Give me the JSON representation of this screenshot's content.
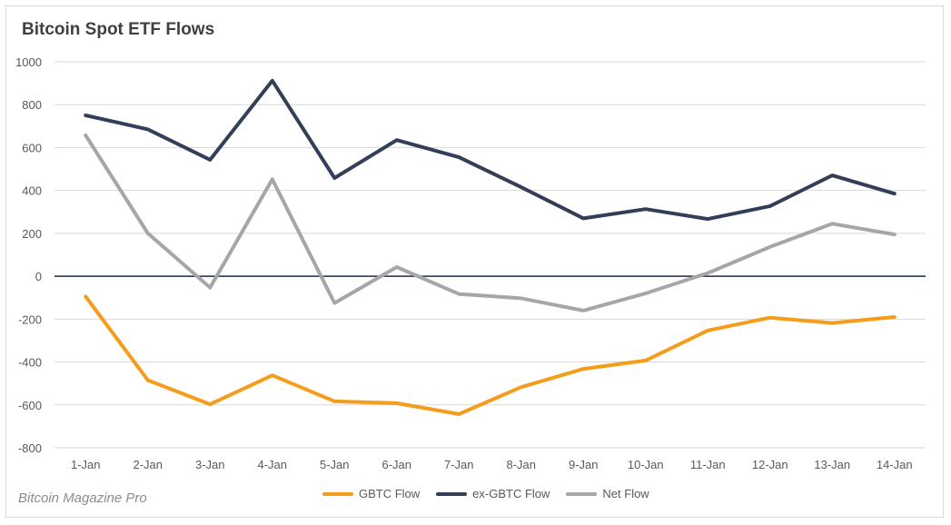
{
  "chart_data": {
    "type": "line",
    "title": "Bitcoin Spot ETF Flows",
    "xlabel": "",
    "ylabel": "",
    "categories": [
      "1-Jan",
      "2-Jan",
      "3-Jan",
      "4-Jan",
      "5-Jan",
      "6-Jan",
      "7-Jan",
      "8-Jan",
      "9-Jan",
      "10-Jan",
      "11-Jan",
      "12-Jan",
      "13-Jan",
      "14-Jan"
    ],
    "ylim": [
      -800,
      1000
    ],
    "yticks": [
      1000,
      800,
      600,
      400,
      200,
      0,
      -200,
      -400,
      -600,
      -800
    ],
    "grid": true,
    "legend_position": "bottom",
    "series": [
      {
        "name": "GBTC Flow",
        "color": "#f59c1a",
        "values": [
          -95,
          -485,
          -597,
          -462,
          -583,
          -592,
          -643,
          -517,
          -432,
          -393,
          -253,
          -193,
          -218,
          -190
        ]
      },
      {
        "name": "ex-GBTC Flow",
        "color": "#333f58",
        "values": [
          750,
          685,
          543,
          912,
          458,
          635,
          555,
          415,
          270,
          313,
          267,
          327,
          470,
          385
        ]
      },
      {
        "name": "Net Flow",
        "color": "#a6a6a6",
        "values": [
          657,
          200,
          -53,
          452,
          -125,
          43,
          -83,
          -103,
          -160,
          -80,
          15,
          137,
          245,
          195
        ]
      }
    ]
  },
  "footer": {
    "watermark": "Bitcoin Magazine Pro"
  }
}
